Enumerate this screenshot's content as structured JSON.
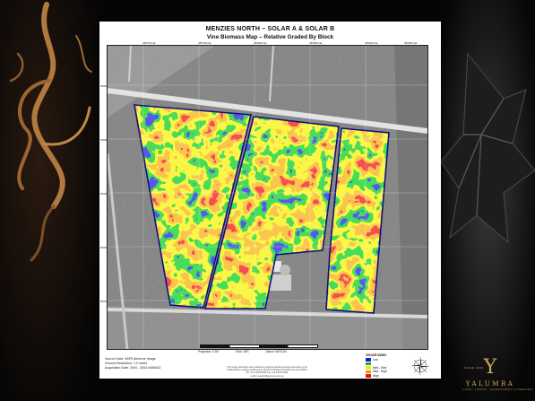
{
  "poster": {
    "title": "MENZIES NORTH – SOLAR A & SOLAR B",
    "subtitle": "Vine Biomass Map – Relative Graded By Block",
    "top_ticks": [
      "485700mE",
      "485750mE",
      "485800mE",
      "485850mE",
      "485900mE",
      "485950mE"
    ],
    "left_ticks": [
      "5868650mN",
      "5868600mN",
      "5868550mN",
      "5868500mN",
      "5868450mN"
    ],
    "projection": "Projection: UTM",
    "zone": "Zone: 54S",
    "datum": "Datum: WGS-84",
    "source_lines": [
      "Source Data: SAFE Airborne Image",
      "Ground Resolution: 1.0 metre",
      "Acquisition Date: 2004 - 2004 #455A02"
    ],
    "notice_lines": [
      "This image information was produced by applying advanced image processing to the",
      "SAFE Airborne imagery performed by Specterra Spatial Information Services (SSIS)",
      "Ph: +61 8 8379 0000   Fax: +61 8 8379 0000",
      "email: research@specterra.com.au"
    ],
    "legend": {
      "title": "VIGOUR INDEX",
      "items": [
        {
          "label": "Low",
          "color": "#1a1ad6"
        },
        {
          "label": "",
          "color": "#11b81a"
        },
        {
          "label": "Med - Med",
          "color": "#f2ea10"
        },
        {
          "label": "Med - High",
          "color": "#f39014"
        },
        {
          "label": "High",
          "color": "#e81414"
        }
      ]
    }
  },
  "brand": {
    "letter": "Y",
    "since": "SINCE 1849",
    "name": "YALUMBA",
    "tagline": "A FAMILY COMPANY · GRAPEGROWERS & WINEMAKERS"
  }
}
